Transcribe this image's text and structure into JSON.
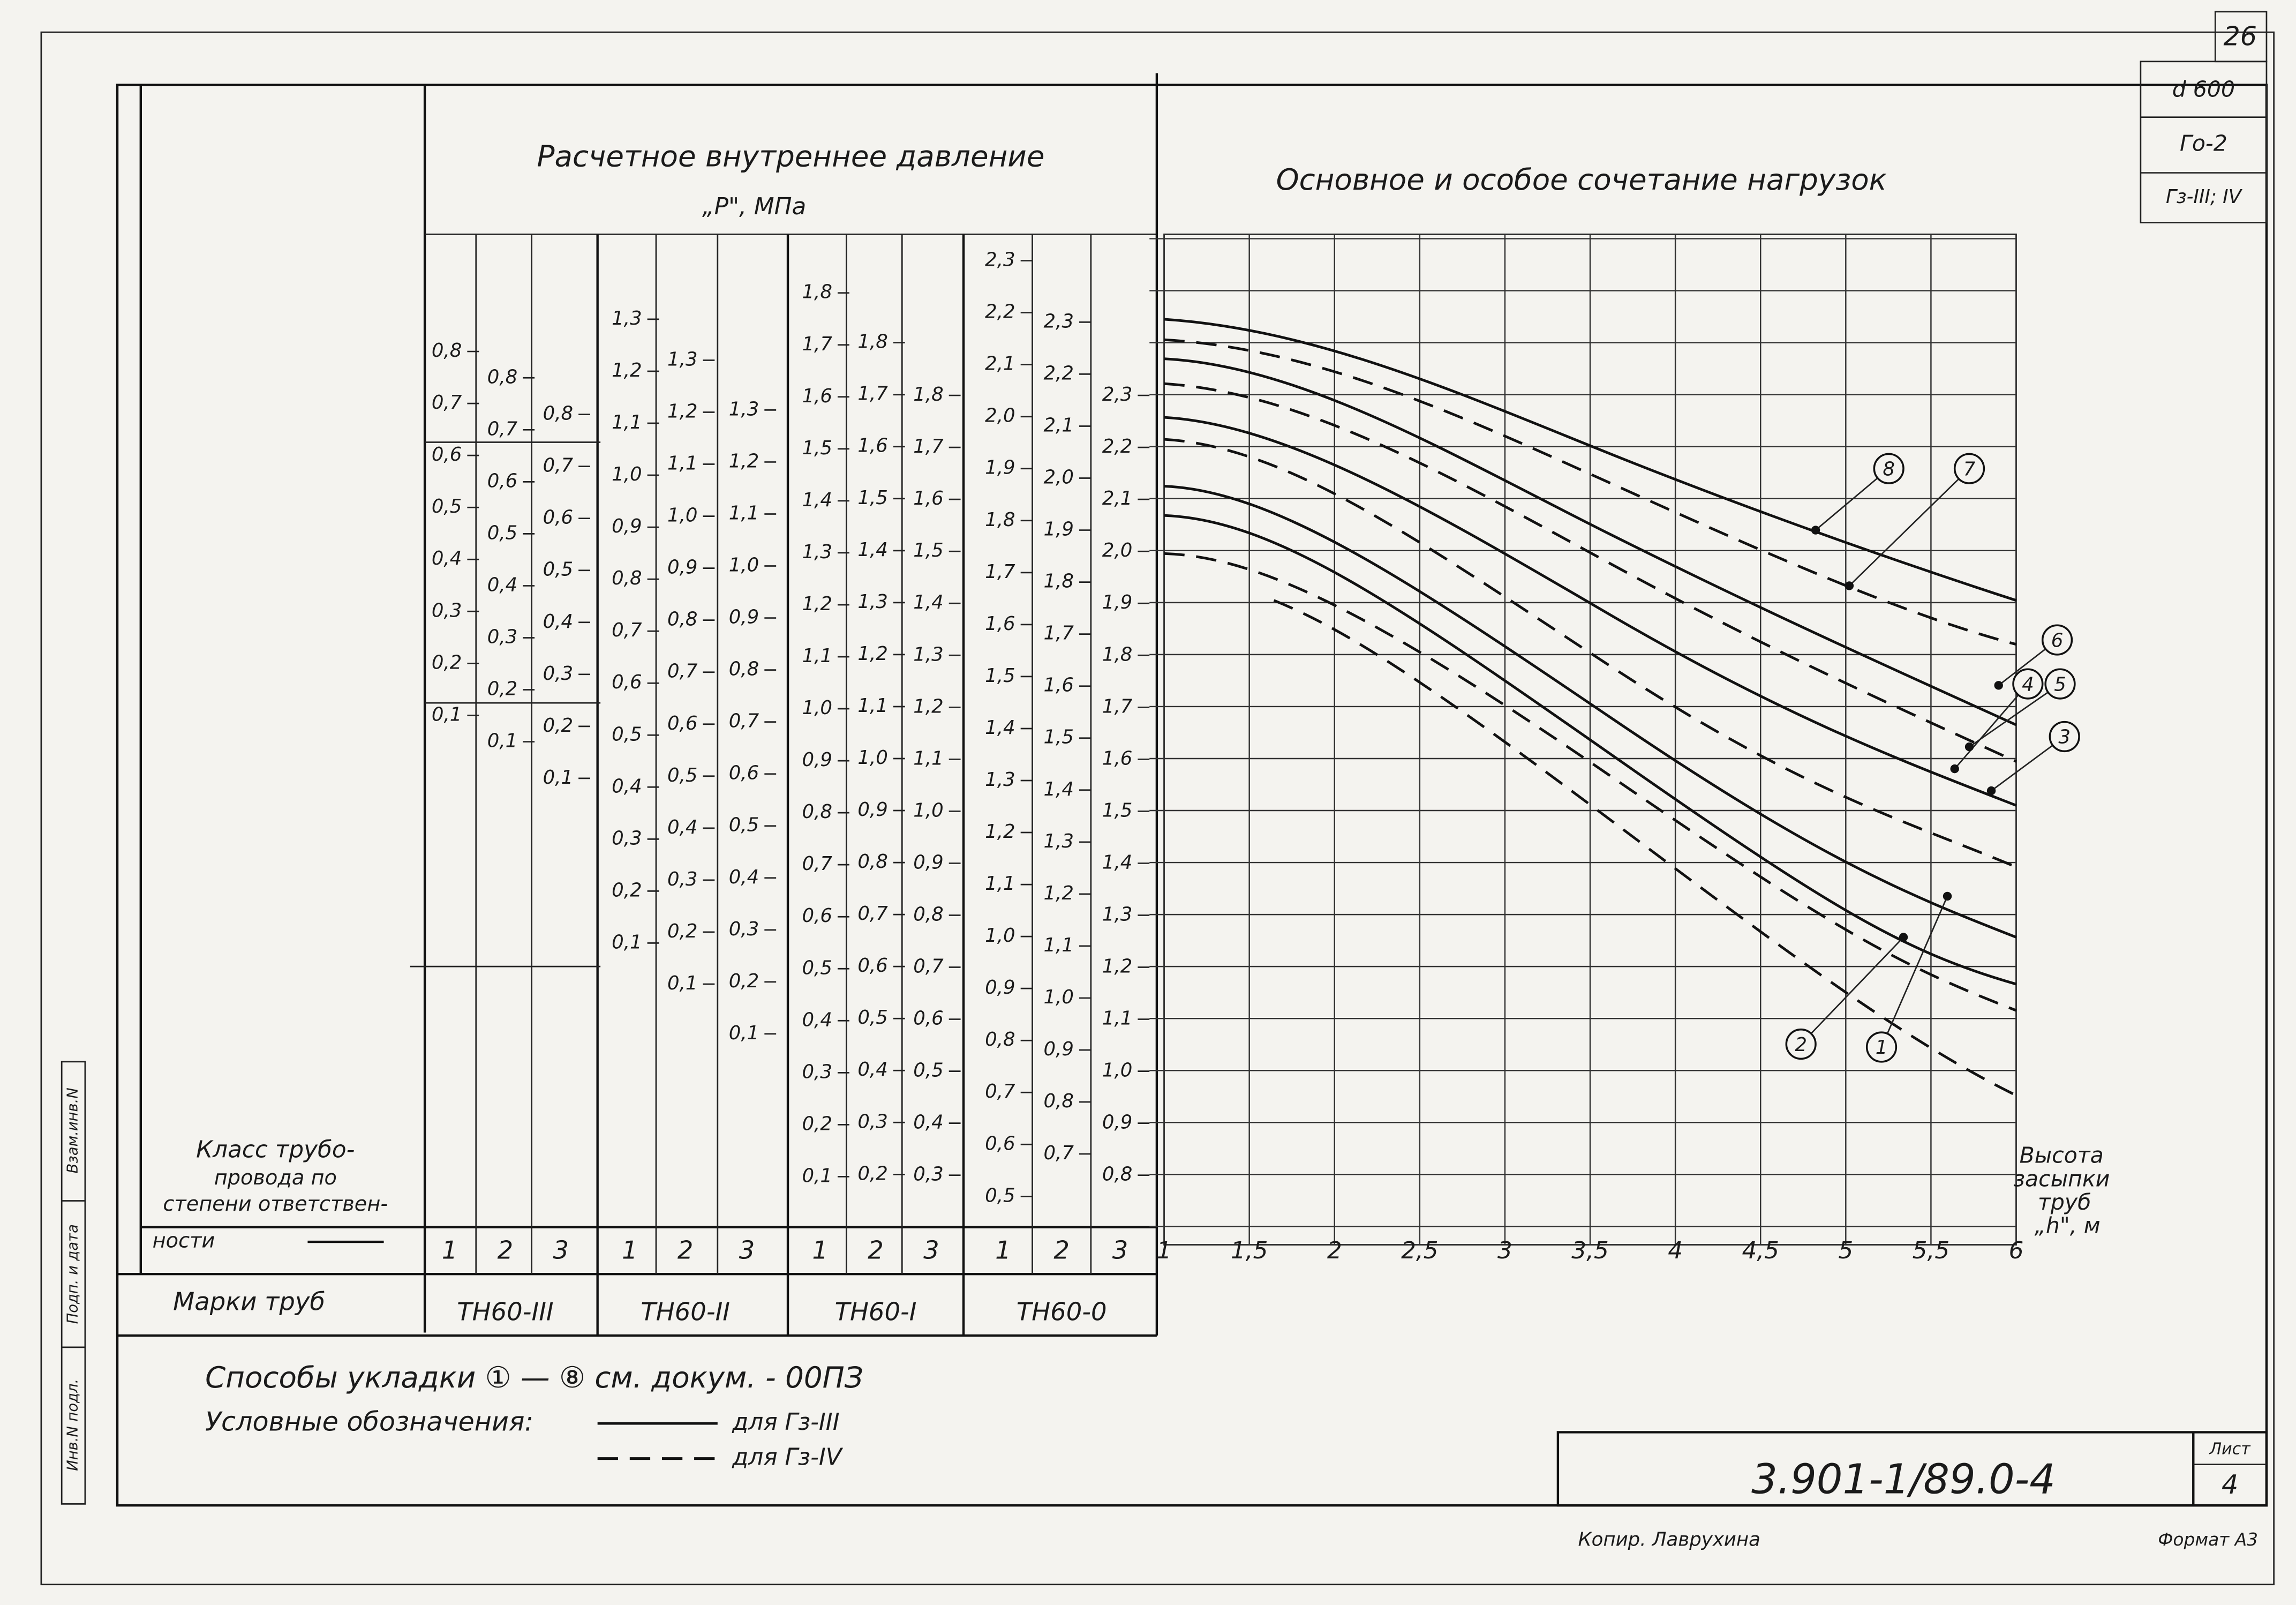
{
  "sheet_number": "26",
  "stamp": [
    "d 600",
    "Го-2",
    "Гз-III; IV"
  ],
  "left_title": [
    "Расчетное внутреннее давление",
    "„P\", МПа"
  ],
  "right_title": "Основное и особое сочетание нагрузок",
  "scales": [
    {
      "mark": "ТН60-III",
      "classes": [
        "1",
        "2",
        "3"
      ],
      "columns": [
        [
          "0,8",
          "0,7",
          "0,6",
          "0,5",
          "0,4",
          "0,3",
          "0,2",
          "0,1"
        ],
        [
          "0,8",
          "0,7",
          "0,6",
          "0,5",
          "0,4",
          "0,3",
          "0,2",
          "0,1"
        ],
        [
          "0,8",
          "0,7",
          "0,6",
          "0,5",
          "0,4",
          "0,3",
          "0,2",
          "0,1"
        ]
      ]
    },
    {
      "mark": "ТН60-II",
      "classes": [
        "1",
        "2",
        "3"
      ],
      "columns": [
        [
          "1,3",
          "1,2",
          "1,1",
          "1,0",
          "0,9",
          "0,8",
          "0,7",
          "0,6",
          "0,5",
          "0,4",
          "0,3",
          "0,2",
          "0,1"
        ],
        [
          "1,3",
          "1,2",
          "1,1",
          "1,0",
          "0,9",
          "0,8",
          "0,7",
          "0,6",
          "0,5",
          "0,4",
          "0,3",
          "0,2",
          "0,1"
        ],
        [
          "1,3",
          "1,2",
          "1,1",
          "1,0",
          "0,9",
          "0,8",
          "0,7",
          "0,6",
          "0,5",
          "0,4",
          "0,3",
          "0,2",
          "0,1"
        ]
      ]
    },
    {
      "mark": "ТН60-I",
      "classes": [
        "1",
        "2",
        "3"
      ],
      "columns": [
        [
          "1,8",
          "1,7",
          "1,6",
          "1,5",
          "1,4",
          "1,3",
          "1,2",
          "1,1",
          "1,0",
          "0,9",
          "0,8",
          "0,7",
          "0,6",
          "0,5",
          "0,4",
          "0,3",
          "0,2",
          "0,1"
        ],
        [
          "1,8",
          "1,7",
          "1,6",
          "1,5",
          "1,4",
          "1,3",
          "1,2",
          "1,1",
          "1,0",
          "0,9",
          "0,8",
          "0,7",
          "0,6",
          "0,5",
          "0,4",
          "0,3",
          "0,2"
        ],
        [
          "1,8",
          "1,7",
          "1,6",
          "1,5",
          "1,4",
          "1,3",
          "1,2",
          "1,1",
          "1,0",
          "0,9",
          "0,8",
          "0,7",
          "0,6",
          "0,5",
          "0,4",
          "0,3"
        ]
      ]
    },
    {
      "mark": "ТН60-0",
      "classes": [
        "1",
        "2",
        "3"
      ],
      "columns": [
        [
          "2,3",
          "2,2",
          "2,1",
          "2,0",
          "1,9",
          "1,8",
          "1,7",
          "1,6",
          "1,5",
          "1,4",
          "1,3",
          "1,2",
          "1,1",
          "1,0",
          "0,9",
          "0,8",
          "0,7",
          "0,6",
          "0,5"
        ],
        [
          "2,3",
          "2,2",
          "2,1",
          "2,0",
          "1,9",
          "1,8",
          "1,7",
          "1,6",
          "1,5",
          "1,4",
          "1,3",
          "1,2",
          "1,1",
          "1,0",
          "0,9",
          "0,8",
          "0,7"
        ],
        [
          "2,3",
          "2,2",
          "2,1",
          "2,0",
          "1,9",
          "1,8",
          "1,7",
          "1,6",
          "1,5",
          "1,4",
          "1,3",
          "1,2",
          "1,1",
          "1,0",
          "0,9",
          "0,8"
        ]
      ]
    }
  ],
  "x_axis": {
    "ticks": [
      "1",
      "1,5",
      "2",
      "2,5",
      "3",
      "3,5",
      "4",
      "4,5",
      "5",
      "5,5",
      "6"
    ],
    "label": [
      "Высота",
      "засыпки",
      "труб",
      "„h\", м"
    ]
  },
  "curve_labels": [
    "1",
    "2",
    "3",
    "4",
    "5",
    "6",
    "7",
    "8"
  ],
  "class_label": [
    "Класс трубо-",
    "провода по",
    "степени ответствен-",
    "ности"
  ],
  "marks_label": "Марки труб",
  "notes": {
    "methods": "Способы укладки ① — ⑧ см. докум. - 00ПЗ",
    "legend_title": "Условные обозначения:",
    "legend": [
      "для Гз-III",
      "для Гз-IV"
    ]
  },
  "title_block": {
    "doc": "3.901-1/89.0-4",
    "sheet_label": "Лист",
    "sheet": "4"
  },
  "copier": "Копир. Лаврухина",
  "format": "Формат А3",
  "side": [
    "Взам.инв.N",
    "Подп. и дата",
    "Инв.N подл."
  ]
}
